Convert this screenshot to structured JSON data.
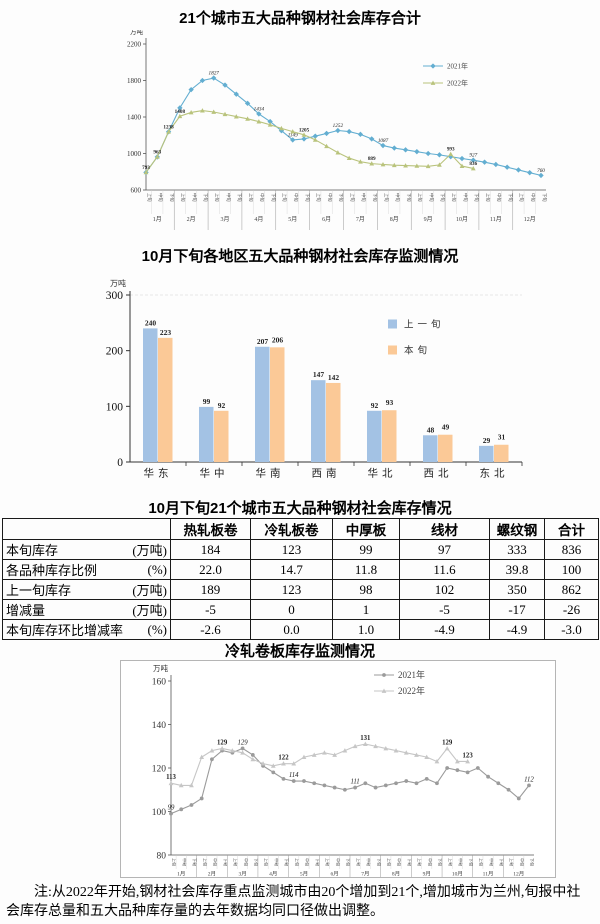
{
  "page": {
    "titles": {
      "chart1": "21个城市五大品种钢材社会库存合计",
      "chart2": "10月下旬各地区五大品种钢材社会库存监测情况",
      "table": "10月下旬21个城市五大品种钢材社会库存情况",
      "chart3": "冷轧卷板库存监测情况"
    },
    "note": "注:从2022年开始,钢材社会库存重点监测城市由20个增加到21个,增加城市为兰州,旬报中社会库存总量和五大品种库存量的去年数据均同口径做出调整。"
  },
  "chart_data": [
    {
      "type": "line",
      "title": "21个城市五大品种钢材社会库存合计",
      "unit": "万吨",
      "ylim": [
        600,
        2200
      ],
      "yticks": [
        2200,
        1800,
        1400,
        1000,
        600
      ],
      "x": {
        "periods": [
          "上旬",
          "中旬",
          "下旬"
        ],
        "months": [
          "1月",
          "2月",
          "3月",
          "4月",
          "5月",
          "6月",
          "7月",
          "8月",
          "9月",
          "10月",
          "11月",
          "12月"
        ]
      },
      "legend_position": "right-top",
      "series": [
        {
          "name": "2021年",
          "color": "#63aed1",
          "marker": "diamond",
          "label_style": "italic",
          "values": [
            793,
            963,
            1238,
            1500,
            1700,
            1800,
            1827,
            1750,
            1650,
            1550,
            1434,
            1350,
            1250,
            1149,
            1160,
            1190,
            1220,
            1252,
            1240,
            1210,
            1160,
            1087,
            1060,
            1040,
            1020,
            1000,
            985,
            965,
            945,
            927,
            905,
            880,
            850,
            820,
            790,
            760
          ],
          "labels": [
            {
              "i": 6,
              "t": "1827"
            },
            {
              "i": 10,
              "t": "1434"
            },
            {
              "i": 13,
              "t": "1149"
            },
            {
              "i": 17,
              "t": "1252"
            },
            {
              "i": 21,
              "t": "1087"
            },
            {
              "i": 29,
              "t": "927"
            },
            {
              "i": 35,
              "t": "760"
            }
          ]
        },
        {
          "name": "2022年",
          "color": "#b9c37c",
          "marker": "triangle",
          "label_style": "bold",
          "values": [
            793,
            963,
            1238,
            1408,
            1450,
            1470,
            1455,
            1430,
            1405,
            1380,
            1350,
            1315,
            1275,
            1240,
            1205,
            1150,
            1080,
            1010,
            950,
            910,
            889,
            880,
            872,
            868,
            864,
            860,
            875,
            993,
            862,
            836
          ],
          "labels": [
            {
              "i": 0,
              "t": "793"
            },
            {
              "i": 1,
              "t": "963"
            },
            {
              "i": 2,
              "t": "1238"
            },
            {
              "i": 3,
              "t": "1408"
            },
            {
              "i": 14,
              "t": "1205"
            },
            {
              "i": 20,
              "t": "889"
            },
            {
              "i": 27,
              "t": "993"
            },
            {
              "i": 29,
              "t": "836"
            }
          ]
        }
      ]
    },
    {
      "type": "bar",
      "title": "10月下旬各地区五大品种钢材社会库存监测情况",
      "unit": "万吨",
      "ylim": [
        0,
        300
      ],
      "yticks": [
        300,
        200,
        100,
        0
      ],
      "categories": [
        "华东",
        "华中",
        "华南",
        "西南",
        "华北",
        "西北",
        "东北"
      ],
      "legend_position": "right-top",
      "series": [
        {
          "name": "上一旬",
          "color": "#a3c2e4",
          "values": [
            240,
            99,
            207,
            147,
            92,
            48,
            29
          ]
        },
        {
          "name": "本旬",
          "color": "#fbc997",
          "values": [
            223,
            92,
            206,
            142,
            93,
            49,
            31
          ]
        }
      ]
    },
    {
      "type": "line",
      "title": "冷轧卷板库存监测情况",
      "unit": "万吨",
      "ylim": [
        80,
        160
      ],
      "yticks": [
        160,
        140,
        120,
        100,
        80
      ],
      "x": {
        "periods": [
          "上旬",
          "中旬",
          "下旬"
        ],
        "months": [
          "1月",
          "2月",
          "3月",
          "4月",
          "5月",
          "6月",
          "7月",
          "8月",
          "9月",
          "10月",
          "11月",
          "12月"
        ]
      },
      "legend_position": "right-top",
      "series": [
        {
          "name": "2021年",
          "color": "#9b9b9b",
          "marker": "circle",
          "label_style": "italic",
          "values": [
            99,
            101,
            103,
            106,
            124,
            128,
            127,
            129,
            126,
            121,
            118,
            115,
            114,
            114,
            113,
            112,
            111,
            110,
            111,
            113,
            111,
            112,
            113,
            114,
            113,
            115,
            113,
            120,
            119,
            118,
            120,
            116,
            113,
            110,
            106,
            112
          ],
          "labels": [
            {
              "i": 0,
              "t": "99"
            },
            {
              "i": 7,
              "t": "129"
            },
            {
              "i": 12,
              "t": "114"
            },
            {
              "i": 18,
              "t": "111"
            },
            {
              "i": 35,
              "t": "112"
            }
          ]
        },
        {
          "name": "2022年",
          "color": "#c6c6c6",
          "marker": "triangle",
          "label_style": "bold",
          "values": [
            113,
            112,
            112,
            125,
            128,
            129,
            128,
            127,
            124,
            122,
            121,
            122,
            122,
            125,
            126,
            127,
            126,
            128,
            130,
            131,
            130,
            129,
            128,
            127,
            126,
            125,
            123,
            129,
            123,
            123
          ],
          "labels": [
            {
              "i": 0,
              "t": "113"
            },
            {
              "i": 5,
              "t": "129"
            },
            {
              "i": 11,
              "t": "122"
            },
            {
              "i": 19,
              "t": "131"
            },
            {
              "i": 27,
              "t": "129"
            },
            {
              "i": 29,
              "t": "123"
            }
          ]
        }
      ]
    }
  ],
  "table": {
    "columns": [
      "",
      "热轧板卷",
      "冷轧板卷",
      "中厚板",
      "线材",
      "螺纹钢",
      "合计"
    ],
    "rows": [
      {
        "label": "本旬库存",
        "unit": "(万吨)",
        "values": [
          "184",
          "123",
          "99",
          "97",
          "333",
          "836"
        ]
      },
      {
        "label": "各品种库存比例",
        "unit": "(%)",
        "values": [
          "22.0",
          "14.7",
          "11.8",
          "11.6",
          "39.8",
          "100"
        ]
      },
      {
        "label": "上一旬库存",
        "unit": "(万吨)",
        "values": [
          "189",
          "123",
          "98",
          "102",
          "350",
          "862"
        ]
      },
      {
        "label": "增减量",
        "unit": "(万吨)",
        "values": [
          "-5",
          "0",
          "1",
          "-5",
          "-17",
          "-26"
        ]
      },
      {
        "label": "本旬库存环比增减率",
        "unit": "(%)",
        "values": [
          "-2.6",
          "0.0",
          "1.0",
          "-4.9",
          "-4.9",
          "-3.0"
        ]
      }
    ]
  }
}
